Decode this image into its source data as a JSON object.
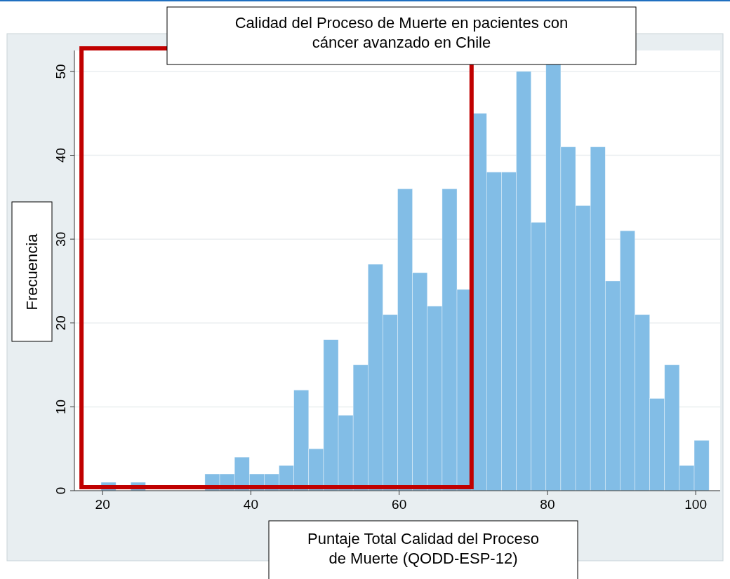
{
  "chart_data": {
    "type": "histogram",
    "title": "Calidad del Proceso de Muerte en pacientes con cáncer avanzado en Chile",
    "xlabel": "Puntaje Total Calidad del Proceso de Muerte (QODD-ESP-12)",
    "ylabel": "Frecuencia",
    "bins": [
      19.8,
      21.8,
      23.8,
      25.8,
      27.8,
      29.8,
      31.8,
      33.8,
      35.8,
      37.8,
      39.8,
      41.8,
      43.8,
      45.8,
      47.8,
      49.8,
      51.8,
      53.8,
      55.8,
      57.8,
      59.8,
      61.8,
      63.8,
      65.8,
      67.8,
      69.8,
      71.8,
      73.8,
      75.8,
      77.8,
      79.8,
      81.8,
      83.8,
      85.8,
      87.8,
      89.8,
      91.8,
      93.8,
      95.8,
      97.8,
      99.8,
      101.8
    ],
    "values": [
      1,
      0,
      1,
      0,
      0,
      0,
      0,
      2,
      2,
      4,
      2,
      2,
      3,
      12,
      5,
      18,
      9,
      15,
      27,
      21,
      36,
      26,
      22,
      36,
      24,
      45,
      38,
      38,
      50,
      32,
      51,
      41,
      34,
      41,
      25,
      31,
      21,
      11,
      15,
      3,
      6
    ],
    "color": "#82bde6",
    "xlim": [
      16.2,
      103.3
    ],
    "ylim": [
      0,
      52.5
    ],
    "xticks": [
      20,
      40,
      60,
      80,
      100
    ],
    "yticks": [
      0,
      10,
      20,
      30,
      40,
      50
    ],
    "grid": "y"
  }
}
